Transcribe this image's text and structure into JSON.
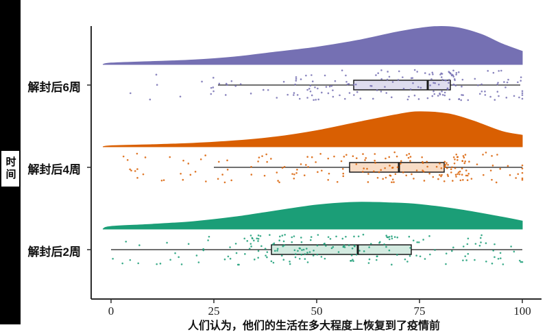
{
  "chart_data": {
    "type": "raincloud",
    "description": "Half-violin density + boxplot + jittered raw points per time group",
    "xlabel": "人们认为，他们的生活在多大程度上恢复到了疫情前",
    "ylabel": "时间",
    "xlim": [
      0,
      100
    ],
    "x_ticks": [
      "0",
      "25",
      "50",
      "75",
      "100"
    ],
    "x_tick_values": [
      0,
      25,
      50,
      75,
      100
    ],
    "grid": "off",
    "legend": "none",
    "jitter_seed": 7,
    "groups": [
      {
        "id": "week6",
        "label": "解封后6周",
        "color": "#7570B3",
        "box_fill": "#DEDCEE",
        "box": {
          "whisker_lo": 26,
          "q1": 59,
          "median": 77,
          "q3": 82.5,
          "whisker_hi": 99.5
        },
        "density": {
          "peak_frac": 1.0,
          "x": [
            -2,
            0,
            10,
            20,
            30,
            40,
            50,
            60,
            70,
            78,
            84,
            90,
            95,
            100
          ],
          "h": [
            0,
            0.04,
            0.08,
            0.12,
            0.2,
            0.33,
            0.46,
            0.64,
            0.87,
            1.0,
            0.98,
            0.8,
            0.55,
            0.35
          ]
        },
        "points": {
          "n": 190,
          "mixture": [
            {
              "type": "normal",
              "mean": 76,
              "sd": 12,
              "w": 0.45
            },
            {
              "type": "normal",
              "mean": 83,
              "sd": 2,
              "w": 0.13
            },
            {
              "type": "normal",
              "mean": 50,
              "sd": 12,
              "w": 0.2
            },
            {
              "type": "normal",
              "mean": 95,
              "sd": 4,
              "w": 0.1
            },
            {
              "type": "uniform",
              "lo": 2,
              "hi": 35,
              "w": 0.12
            }
          ]
        }
      },
      {
        "id": "week4",
        "label": "解封后4周",
        "color": "#D95F02",
        "box_fill": "#F8DCC5",
        "box": {
          "whisker_lo": 25,
          "q1": 58,
          "median": 70,
          "q3": 81,
          "whisker_hi": 100
        },
        "density": {
          "peak_frac": 0.93,
          "x": [
            -2,
            0,
            10,
            20,
            30,
            40,
            50,
            60,
            70,
            75,
            82,
            88,
            95,
            100
          ],
          "h": [
            0,
            0.03,
            0.06,
            0.1,
            0.17,
            0.28,
            0.46,
            0.7,
            0.93,
            1.0,
            0.94,
            0.74,
            0.44,
            0.33
          ]
        },
        "points": {
          "n": 200,
          "mixture": [
            {
              "type": "normal",
              "mean": 73,
              "sd": 11,
              "w": 0.42
            },
            {
              "type": "normal",
              "mean": 84,
              "sd": 2.5,
              "w": 0.16
            },
            {
              "type": "normal",
              "mean": 48,
              "sd": 13,
              "w": 0.2
            },
            {
              "type": "uniform",
              "lo": 0,
              "hi": 30,
              "w": 0.12
            },
            {
              "type": "normal",
              "mean": 95,
              "sd": 4,
              "w": 0.1
            }
          ]
        }
      },
      {
        "id": "week2",
        "label": "解封后2周",
        "color": "#1B9E77",
        "box_fill": "#D3EAE0",
        "box": {
          "whisker_lo": 0,
          "q1": 39,
          "median": 60,
          "q3": 73,
          "whisker_hi": 100
        },
        "density": {
          "peak_frac": 0.71,
          "x": [
            -2,
            0,
            10,
            20,
            30,
            40,
            50,
            59,
            68,
            75,
            85,
            95,
            100
          ],
          "h": [
            0,
            0.1,
            0.18,
            0.28,
            0.45,
            0.68,
            0.9,
            1.0,
            0.98,
            0.92,
            0.72,
            0.45,
            0.3
          ]
        },
        "points": {
          "n": 200,
          "mixture": [
            {
              "type": "normal",
              "mean": 60,
              "sd": 15,
              "w": 0.45
            },
            {
              "type": "normal",
              "mean": 40,
              "sd": 10,
              "w": 0.2
            },
            {
              "type": "uniform",
              "lo": 0,
              "hi": 100,
              "w": 0.3
            },
            {
              "type": "normal",
              "mean": 90,
              "sd": 5,
              "w": 0.05
            }
          ]
        }
      }
    ],
    "colors": {
      "axis": "#2a2a2a",
      "box_stroke": "#1a1a1a",
      "whisker": "#1a1a1a",
      "tick_text": "#222222",
      "sidebar_bg": "#000000",
      "label_text": "#111111"
    }
  }
}
